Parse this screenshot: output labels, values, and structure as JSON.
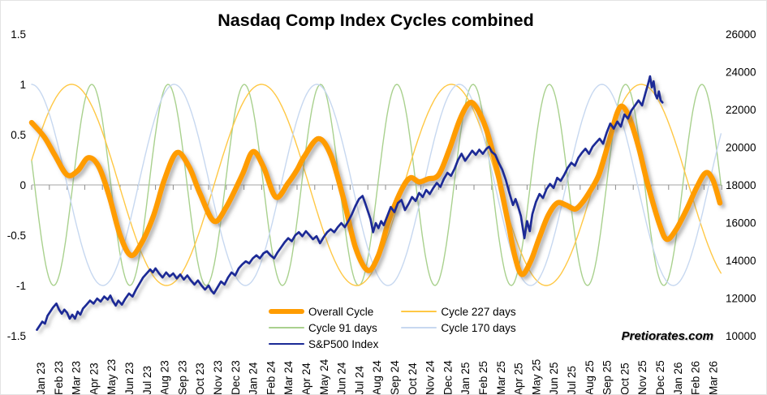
{
  "title": "Nasdaq Comp Index Cycles combined",
  "watermark": "Pretiorates.com",
  "axes": {
    "left": {
      "labels": [
        "1.5",
        "1",
        "0.5",
        "0",
        "-0.5",
        "-1",
        "-1.5"
      ],
      "values": [
        1.5,
        1,
        0.5,
        0,
        -0.5,
        -1,
        -1.5
      ]
    },
    "right": {
      "labels": [
        "26000",
        "24000",
        "22000",
        "20000",
        "18000",
        "16000",
        "14000",
        "12000",
        "10000"
      ],
      "values": [
        26000,
        24000,
        22000,
        20000,
        18000,
        16000,
        14000,
        12000,
        10000
      ]
    },
    "x": {
      "labels": [
        "Jan 23",
        "Feb 23",
        "Mar 23",
        "Apr 23",
        "May 23",
        "Jun 23",
        "Jul 23",
        "Aug 23",
        "Sep 23",
        "Oct 23",
        "Nov 23",
        "Dec 23",
        "Jan 24",
        "Feb 24",
        "Mar 24",
        "Apr 24",
        "May 24",
        "Jun 24",
        "Jul 24",
        "Aug 24",
        "Sep 24",
        "Oct 24",
        "Nov 24",
        "Dec 24",
        "Jan 25",
        "Feb 25",
        "Mar 25",
        "Apr 25",
        "May 25",
        "Jun 25",
        "Jul 25",
        "Aug 25",
        "Sep 25",
        "Oct 25",
        "Nov 25",
        "Dec 25",
        "Jan 26",
        "Feb 26",
        "Mar 26"
      ]
    }
  },
  "legend": {
    "columns": [
      {
        "items": [
          {
            "label": "Overall Cycle",
            "series": 0
          },
          {
            "label": "Cycle 91 days",
            "series": 1
          },
          {
            "label": "S&P500 Index",
            "series": 4
          }
        ]
      },
      {
        "items": [
          {
            "label": "Cycle 227 days",
            "series": 2
          },
          {
            "label": "Cycle 170 days",
            "series": 3
          }
        ]
      }
    ]
  },
  "chart_data": {
    "type": "line",
    "title": "Nasdaq Comp Index Cycles combined",
    "x_unit": "months since Jan 2023",
    "x_range": [
      0,
      39
    ],
    "ylim_left": [
      -1.5,
      1.5
    ],
    "ylim_right": [
      10000,
      26000
    ],
    "grid": "zero-line-only",
    "legend_position": "bottom-center",
    "zero_line_color": "#A6A6A6",
    "tick_color": "#8C8C8C",
    "series": [
      {
        "name": "Overall Cycle",
        "color": "#FF9C00",
        "width": 6.5,
        "style": "smooth",
        "shadow": true,
        "points": [
          [
            0.0,
            0.62
          ],
          [
            0.7,
            0.48
          ],
          [
            1.3,
            0.3
          ],
          [
            2.0,
            0.1
          ],
          [
            2.6,
            0.14
          ],
          [
            3.2,
            0.27
          ],
          [
            3.8,
            0.18
          ],
          [
            4.4,
            -0.12
          ],
          [
            5.0,
            -0.5
          ],
          [
            5.6,
            -0.7
          ],
          [
            6.2,
            -0.58
          ],
          [
            6.9,
            -0.3
          ],
          [
            7.5,
            0.05
          ],
          [
            8.2,
            0.32
          ],
          [
            8.9,
            0.18
          ],
          [
            9.5,
            -0.08
          ],
          [
            10.3,
            -0.36
          ],
          [
            11.0,
            -0.22
          ],
          [
            11.9,
            0.1
          ],
          [
            12.5,
            0.33
          ],
          [
            13.1,
            0.18
          ],
          [
            13.8,
            -0.12
          ],
          [
            14.5,
            0.02
          ],
          [
            15.0,
            0.15
          ],
          [
            15.4,
            0.28
          ],
          [
            16.2,
            0.46
          ],
          [
            16.9,
            0.3
          ],
          [
            17.6,
            -0.12
          ],
          [
            18.3,
            -0.62
          ],
          [
            19.0,
            -0.85
          ],
          [
            19.6,
            -0.7
          ],
          [
            20.2,
            -0.35
          ],
          [
            20.9,
            -0.05
          ],
          [
            21.4,
            0.07
          ],
          [
            21.9,
            0.03
          ],
          [
            22.4,
            0.06
          ],
          [
            23.0,
            0.1
          ],
          [
            23.6,
            0.35
          ],
          [
            24.2,
            0.65
          ],
          [
            24.7,
            0.81
          ],
          [
            25.1,
            0.78
          ],
          [
            25.7,
            0.55
          ],
          [
            26.3,
            0.15
          ],
          [
            26.9,
            -0.35
          ],
          [
            27.3,
            -0.7
          ],
          [
            27.7,
            -0.89
          ],
          [
            28.2,
            -0.76
          ],
          [
            28.7,
            -0.52
          ],
          [
            29.2,
            -0.3
          ],
          [
            29.7,
            -0.18
          ],
          [
            30.2,
            -0.2
          ],
          [
            30.7,
            -0.24
          ],
          [
            31.1,
            -0.18
          ],
          [
            31.6,
            -0.05
          ],
          [
            32.1,
            0.12
          ],
          [
            32.7,
            0.48
          ],
          [
            33.1,
            0.72
          ],
          [
            33.4,
            0.78
          ],
          [
            33.8,
            0.66
          ],
          [
            34.3,
            0.38
          ],
          [
            34.8,
            0.02
          ],
          [
            35.5,
            -0.4
          ],
          [
            35.9,
            -0.54
          ],
          [
            36.4,
            -0.45
          ],
          [
            37.0,
            -0.25
          ],
          [
            37.6,
            -0.02
          ],
          [
            38.1,
            0.12
          ],
          [
            38.5,
            0.05
          ],
          [
            38.9,
            -0.18
          ]
        ]
      },
      {
        "name": "Cycle 91 days",
        "color": "#A9D18E",
        "width": 1.4,
        "style": "sine",
        "shadow": false,
        "period_months": 4.31,
        "peak_month": 20.64,
        "amplitude": 1.0
      },
      {
        "name": "Cycle 227 days",
        "color": "#FFC845",
        "width": 1.4,
        "style": "sine",
        "shadow": false,
        "period_months": 10.73,
        "peak_month": 23.72,
        "amplitude": 1.0
      },
      {
        "name": "Cycle 170 days",
        "color": "#C7D8F0",
        "width": 1.4,
        "style": "sine",
        "shadow": false,
        "period_months": 8.06,
        "peak_month": 24.17,
        "amplitude": 1.0
      },
      {
        "name": "S&P500 Index",
        "color": "#1B2A96",
        "width": 2.7,
        "style": "poly",
        "shadow": true,
        "points": [
          [
            0.3,
            -1.44
          ],
          [
            0.45,
            -1.4
          ],
          [
            0.6,
            -1.36
          ],
          [
            0.75,
            -1.38
          ],
          [
            0.9,
            -1.3
          ],
          [
            1.05,
            -1.26
          ],
          [
            1.2,
            -1.22
          ],
          [
            1.4,
            -1.18
          ],
          [
            1.55,
            -1.24
          ],
          [
            1.7,
            -1.28
          ],
          [
            1.85,
            -1.24
          ],
          [
            2.0,
            -1.27
          ],
          [
            2.15,
            -1.33
          ],
          [
            2.3,
            -1.29
          ],
          [
            2.45,
            -1.33
          ],
          [
            2.6,
            -1.26
          ],
          [
            2.75,
            -1.29
          ],
          [
            2.9,
            -1.23
          ],
          [
            3.1,
            -1.19
          ],
          [
            3.3,
            -1.15
          ],
          [
            3.5,
            -1.18
          ],
          [
            3.7,
            -1.13
          ],
          [
            3.9,
            -1.16
          ],
          [
            4.1,
            -1.11
          ],
          [
            4.3,
            -1.14
          ],
          [
            4.45,
            -1.1
          ],
          [
            4.6,
            -1.16
          ],
          [
            4.75,
            -1.2
          ],
          [
            4.9,
            -1.15
          ],
          [
            5.1,
            -1.19
          ],
          [
            5.3,
            -1.13
          ],
          [
            5.5,
            -1.08
          ],
          [
            5.7,
            -1.11
          ],
          [
            5.9,
            -1.04
          ],
          [
            6.1,
            -0.98
          ],
          [
            6.3,
            -0.92
          ],
          [
            6.5,
            -0.88
          ],
          [
            6.7,
            -0.84
          ],
          [
            6.85,
            -0.87
          ],
          [
            7.0,
            -0.83
          ],
          [
            7.2,
            -0.88
          ],
          [
            7.4,
            -0.92
          ],
          [
            7.6,
            -0.87
          ],
          [
            7.8,
            -0.91
          ],
          [
            8.0,
            -0.88
          ],
          [
            8.2,
            -0.93
          ],
          [
            8.4,
            -0.89
          ],
          [
            8.6,
            -0.94
          ],
          [
            8.8,
            -0.9
          ],
          [
            9.0,
            -0.95
          ],
          [
            9.2,
            -0.99
          ],
          [
            9.4,
            -0.95
          ],
          [
            9.6,
            -1.0
          ],
          [
            9.8,
            -1.04
          ],
          [
            10.0,
            -1.0
          ],
          [
            10.15,
            -1.05
          ],
          [
            10.3,
            -1.08
          ],
          [
            10.5,
            -1.02
          ],
          [
            10.7,
            -0.96
          ],
          [
            10.9,
            -0.99
          ],
          [
            11.1,
            -0.92
          ],
          [
            11.3,
            -0.87
          ],
          [
            11.5,
            -0.9
          ],
          [
            11.7,
            -0.83
          ],
          [
            11.9,
            -0.79
          ],
          [
            12.1,
            -0.76
          ],
          [
            12.3,
            -0.78
          ],
          [
            12.5,
            -0.73
          ],
          [
            12.7,
            -0.7
          ],
          [
            12.9,
            -0.73
          ],
          [
            13.1,
            -0.68
          ],
          [
            13.3,
            -0.66
          ],
          [
            13.5,
            -0.7
          ],
          [
            13.7,
            -0.73
          ],
          [
            13.9,
            -0.67
          ],
          [
            14.1,
            -0.62
          ],
          [
            14.3,
            -0.57
          ],
          [
            14.5,
            -0.53
          ],
          [
            14.7,
            -0.56
          ],
          [
            14.9,
            -0.5
          ],
          [
            15.1,
            -0.47
          ],
          [
            15.3,
            -0.51
          ],
          [
            15.5,
            -0.46
          ],
          [
            15.7,
            -0.5
          ],
          [
            15.9,
            -0.54
          ],
          [
            16.1,
            -0.51
          ],
          [
            16.3,
            -0.58
          ],
          [
            16.5,
            -0.52
          ],
          [
            16.7,
            -0.47
          ],
          [
            16.9,
            -0.44
          ],
          [
            17.1,
            -0.47
          ],
          [
            17.3,
            -0.42
          ],
          [
            17.5,
            -0.38
          ],
          [
            17.7,
            -0.42
          ],
          [
            17.9,
            -0.36
          ],
          [
            18.1,
            -0.29
          ],
          [
            18.3,
            -0.21
          ],
          [
            18.5,
            -0.14
          ],
          [
            18.7,
            -0.11
          ],
          [
            18.85,
            -0.18
          ],
          [
            19.0,
            -0.26
          ],
          [
            19.15,
            -0.34
          ],
          [
            19.3,
            -0.47
          ],
          [
            19.45,
            -0.38
          ],
          [
            19.6,
            -0.43
          ],
          [
            19.75,
            -0.36
          ],
          [
            19.9,
            -0.4
          ],
          [
            20.1,
            -0.31
          ],
          [
            20.3,
            -0.22
          ],
          [
            20.5,
            -0.27
          ],
          [
            20.7,
            -0.18
          ],
          [
            20.9,
            -0.15
          ],
          [
            21.1,
            -0.25
          ],
          [
            21.3,
            -0.19
          ],
          [
            21.5,
            -0.12
          ],
          [
            21.7,
            -0.16
          ],
          [
            21.9,
            -0.08
          ],
          [
            22.1,
            -0.12
          ],
          [
            22.3,
            -0.05
          ],
          [
            22.5,
            -0.09
          ],
          [
            22.7,
            -0.03
          ],
          [
            22.9,
            0.02
          ],
          [
            23.1,
            -0.02
          ],
          [
            23.3,
            0.06
          ],
          [
            23.5,
            0.12
          ],
          [
            23.7,
            0.09
          ],
          [
            23.9,
            0.16
          ],
          [
            24.1,
            0.25
          ],
          [
            24.3,
            0.31
          ],
          [
            24.5,
            0.24
          ],
          [
            24.7,
            0.29
          ],
          [
            24.9,
            0.34
          ],
          [
            25.1,
            0.3
          ],
          [
            25.3,
            0.35
          ],
          [
            25.5,
            0.31
          ],
          [
            25.7,
            0.36
          ],
          [
            25.85,
            0.38
          ],
          [
            26.0,
            0.33
          ],
          [
            26.2,
            0.3
          ],
          [
            26.4,
            0.22
          ],
          [
            26.6,
            0.15
          ],
          [
            26.8,
            0.05
          ],
          [
            27.0,
            -0.08
          ],
          [
            27.2,
            -0.2
          ],
          [
            27.35,
            -0.14
          ],
          [
            27.5,
            -0.22
          ],
          [
            27.65,
            -0.31
          ],
          [
            27.85,
            -0.53
          ],
          [
            28.0,
            -0.36
          ],
          [
            28.15,
            -0.46
          ],
          [
            28.3,
            -0.29
          ],
          [
            28.5,
            -0.17
          ],
          [
            28.7,
            -0.09
          ],
          [
            28.9,
            -0.13
          ],
          [
            29.1,
            -0.04
          ],
          [
            29.3,
            0.01
          ],
          [
            29.5,
            -0.03
          ],
          [
            29.7,
            0.07
          ],
          [
            29.9,
            0.04
          ],
          [
            30.1,
            0.1
          ],
          [
            30.3,
            0.17
          ],
          [
            30.5,
            0.22
          ],
          [
            30.7,
            0.19
          ],
          [
            30.9,
            0.27
          ],
          [
            31.1,
            0.32
          ],
          [
            31.3,
            0.36
          ],
          [
            31.5,
            0.31
          ],
          [
            31.7,
            0.38
          ],
          [
            31.9,
            0.42
          ],
          [
            32.1,
            0.46
          ],
          [
            32.3,
            0.41
          ],
          [
            32.5,
            0.52
          ],
          [
            32.7,
            0.61
          ],
          [
            32.9,
            0.56
          ],
          [
            33.1,
            0.63
          ],
          [
            33.3,
            0.58
          ],
          [
            33.5,
            0.7
          ],
          [
            33.7,
            0.66
          ],
          [
            33.9,
            0.74
          ],
          [
            34.1,
            0.79
          ],
          [
            34.3,
            0.84
          ],
          [
            34.5,
            0.79
          ],
          [
            34.7,
            0.92
          ],
          [
            34.85,
            1.01
          ],
          [
            34.95,
            1.08
          ],
          [
            35.05,
            0.97
          ],
          [
            35.15,
            1.03
          ],
          [
            35.25,
            0.9
          ],
          [
            35.35,
            0.86
          ],
          [
            35.45,
            0.93
          ],
          [
            35.55,
            0.84
          ],
          [
            35.65,
            0.82
          ]
        ]
      }
    ]
  }
}
